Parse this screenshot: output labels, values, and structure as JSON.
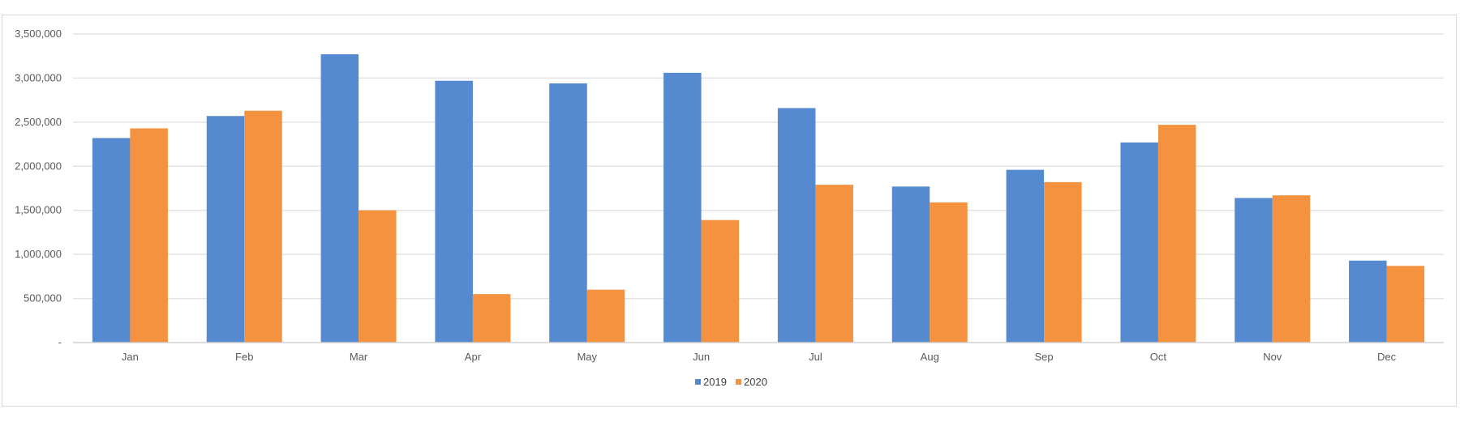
{
  "chart_data": {
    "type": "bar",
    "title": "",
    "xlabel": "",
    "ylabel": "",
    "categories": [
      "Jan",
      "Feb",
      "Mar",
      "Apr",
      "May",
      "Jun",
      "Jul",
      "Aug",
      "Sep",
      "Oct",
      "Nov",
      "Dec"
    ],
    "series": [
      {
        "name": "2019",
        "color": "#5589D0",
        "values": [
          2320000,
          2570000,
          3270000,
          2970000,
          2940000,
          3060000,
          2660000,
          1770000,
          1960000,
          2270000,
          1640000,
          930000
        ]
      },
      {
        "name": "2020",
        "color": "#F4923F",
        "values": [
          2430000,
          2630000,
          1500000,
          550000,
          600000,
          1390000,
          1790000,
          1590000,
          1820000,
          2470000,
          1670000,
          870000
        ]
      }
    ],
    "ylim": [
      0,
      3500000
    ],
    "yticks": [
      0,
      500000,
      1000000,
      1500000,
      2000000,
      2500000,
      3000000,
      3500000
    ],
    "ytick_labels": [
      "-",
      "500,000",
      "1,000,000",
      "1,500,000",
      "2,000,000",
      "2,500,000",
      "3,000,000",
      "3,500,000"
    ],
    "grid": true,
    "legend_position": "bottom"
  }
}
